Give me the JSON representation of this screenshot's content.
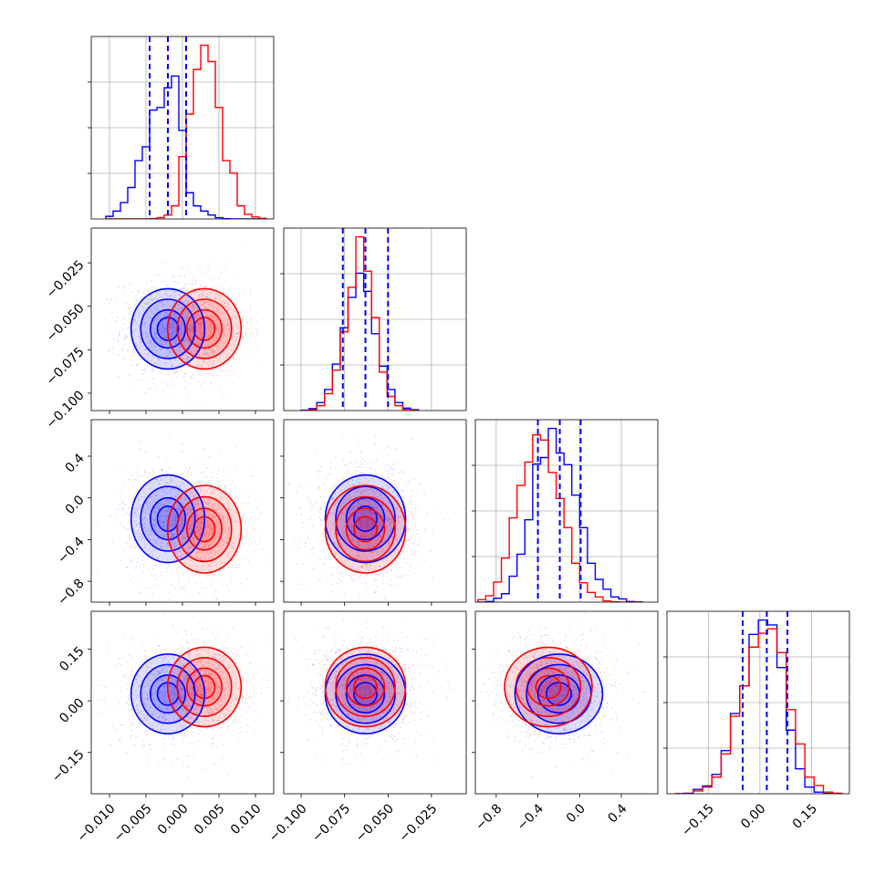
{
  "chart_data": {
    "type": "corner",
    "grid": true,
    "colors": {
      "blue": "#0000ff",
      "red": "#ff0000",
      "grid": "#b0b0b0"
    },
    "params": [
      {
        "range": [
          -0.0125,
          0.0125
        ],
        "ticks": [
          -0.01,
          -0.005,
          0.0,
          0.005,
          0.01
        ],
        "tick_labels": [
          "−0.010",
          "−0.005",
          "0.000",
          "0.005",
          "0.010"
        ]
      },
      {
        "range": [
          -0.11,
          -0.005
        ],
        "ticks": [
          -0.1,
          -0.075,
          -0.05,
          -0.025
        ],
        "tick_labels": [
          "−0.100",
          "−0.075",
          "−0.050",
          "−0.025"
        ]
      },
      {
        "range": [
          -1.0,
          0.75
        ],
        "ticks": [
          -0.8,
          -0.4,
          0.0,
          0.4
        ],
        "tick_labels": [
          "−0.8",
          "−0.4",
          "0.0",
          "0.4"
        ]
      },
      {
        "range": [
          -0.27,
          0.26
        ],
        "ticks": [
          -0.15,
          0.0,
          0.15
        ],
        "tick_labels": [
          "−0.15",
          "0.00",
          "0.15"
        ]
      }
    ],
    "series": [
      {
        "color": "#0000ff",
        "mean": [
          -0.002,
          -0.063,
          -0.2,
          0.02
        ],
        "sd": [
          0.0024,
          0.011,
          0.2,
          0.055
        ],
        "quantiles": [
          [
            -0.0045,
            -0.002,
            0.0005
          ],
          [
            -0.076,
            -0.063,
            -0.05
          ],
          [
            -0.4,
            -0.19,
            0.01
          ],
          [
            -0.05,
            0.02,
            0.08
          ]
        ]
      },
      {
        "color": "#ff0000",
        "mean": [
          0.003,
          -0.063,
          -0.3,
          0.04
        ],
        "sd": [
          0.0024,
          0.011,
          0.2,
          0.055
        ]
      }
    ],
    "histograms": [
      {
        "edges": [
          -0.0105,
          -0.0095,
          -0.0085,
          -0.0075,
          -0.0065,
          -0.0055,
          -0.0045,
          -0.0035,
          -0.0025,
          -0.0015,
          -0.0005,
          0.0005,
          0.0015,
          0.0025,
          0.0035,
          0.0045,
          0.0055,
          0.0065,
          0.0075,
          0.0085,
          0.0095,
          0.0105,
          0.0115
        ],
        "blue": [
          40,
          120,
          250,
          480,
          890,
          1100,
          1660,
          1700,
          2000,
          2180,
          1350,
          400,
          200,
          120,
          60,
          20,
          5,
          0,
          0,
          0,
          0,
          0
        ],
        "red": [
          0,
          0,
          0,
          0,
          0,
          0,
          5,
          20,
          60,
          200,
          950,
          1600,
          2280,
          2650,
          2400,
          1700,
          890,
          700,
          200,
          70,
          30,
          10
        ]
      },
      {
        "edges": [
          -0.1,
          -0.0955,
          -0.091,
          -0.0865,
          -0.082,
          -0.0775,
          -0.073,
          -0.0685,
          -0.064,
          -0.0595,
          -0.055,
          -0.0505,
          -0.046,
          -0.0415,
          -0.037,
          -0.0325
        ],
        "blue": [
          10,
          50,
          200,
          520,
          1150,
          2050,
          2800,
          3400,
          2950,
          1900,
          1100,
          520,
          200,
          60,
          20
        ],
        "red": [
          0,
          20,
          120,
          420,
          1000,
          1950,
          3050,
          4300,
          3450,
          2300,
          950,
          350,
          120,
          30,
          5
        ]
      },
      {
        "edges": [
          -0.975,
          -0.9,
          -0.825,
          -0.75,
          -0.675,
          -0.6,
          -0.525,
          -0.45,
          -0.375,
          -0.3,
          -0.225,
          -0.15,
          -0.075,
          0.0,
          0.075,
          0.15,
          0.225,
          0.3,
          0.375,
          0.45,
          0.525,
          0.6
        ],
        "blue": [
          0,
          10,
          60,
          130,
          400,
          740,
          1270,
          2130,
          2230,
          2680,
          2300,
          2120,
          1650,
          1150,
          600,
          350,
          200,
          80,
          50,
          10,
          5
        ],
        "red": [
          40,
          100,
          310,
          680,
          1300,
          1800,
          2160,
          2580,
          2500,
          2000,
          1600,
          1150,
          600,
          300,
          150,
          80,
          20,
          5,
          0,
          0,
          0
        ]
      },
      {
        "edges": [
          -0.2475,
          -0.2205,
          -0.1935,
          -0.1665,
          -0.1395,
          -0.1125,
          -0.0855,
          -0.0585,
          -0.0315,
          -0.0045,
          0.0225,
          0.0495,
          0.0765,
          0.1035,
          0.1305,
          0.1575,
          0.1845,
          0.2115,
          0.2385
        ],
        "blue": [
          0,
          10,
          80,
          140,
          350,
          780,
          1450,
          1950,
          2880,
          3140,
          3050,
          2280,
          1150,
          450,
          120,
          30,
          5,
          0
        ],
        "red": [
          0,
          0,
          50,
          120,
          300,
          720,
          1400,
          1950,
          2650,
          2900,
          2980,
          2550,
          1520,
          900,
          300,
          150,
          30,
          10
        ]
      }
    ]
  }
}
